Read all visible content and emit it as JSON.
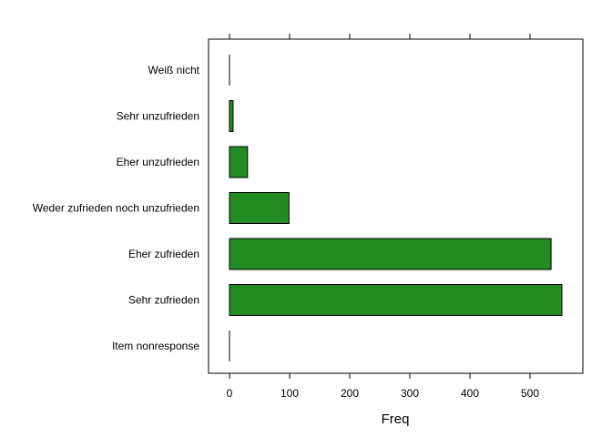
{
  "chart_data": {
    "type": "bar",
    "orientation": "horizontal",
    "categories": [
      "Item nonresponse",
      "Sehr zufrieden",
      "Eher zufrieden",
      "Weder zufrieden noch unzufrieden",
      "Eher unzufrieden",
      "Sehr unzufrieden",
      "Weiß nicht"
    ],
    "values": [
      0,
      553,
      535,
      99,
      30,
      6,
      0
    ],
    "xlabel": "Freq",
    "ylabel": "",
    "xlim": [
      -35,
      590
    ],
    "xticks": [
      0,
      100,
      200,
      300,
      400,
      500
    ],
    "xtick_labels": [
      "0",
      "100",
      "200",
      "300",
      "400",
      "500"
    ],
    "bar_color": "#228B22",
    "bar_edge_color": "#000000",
    "grid": false,
    "legend": false
  }
}
